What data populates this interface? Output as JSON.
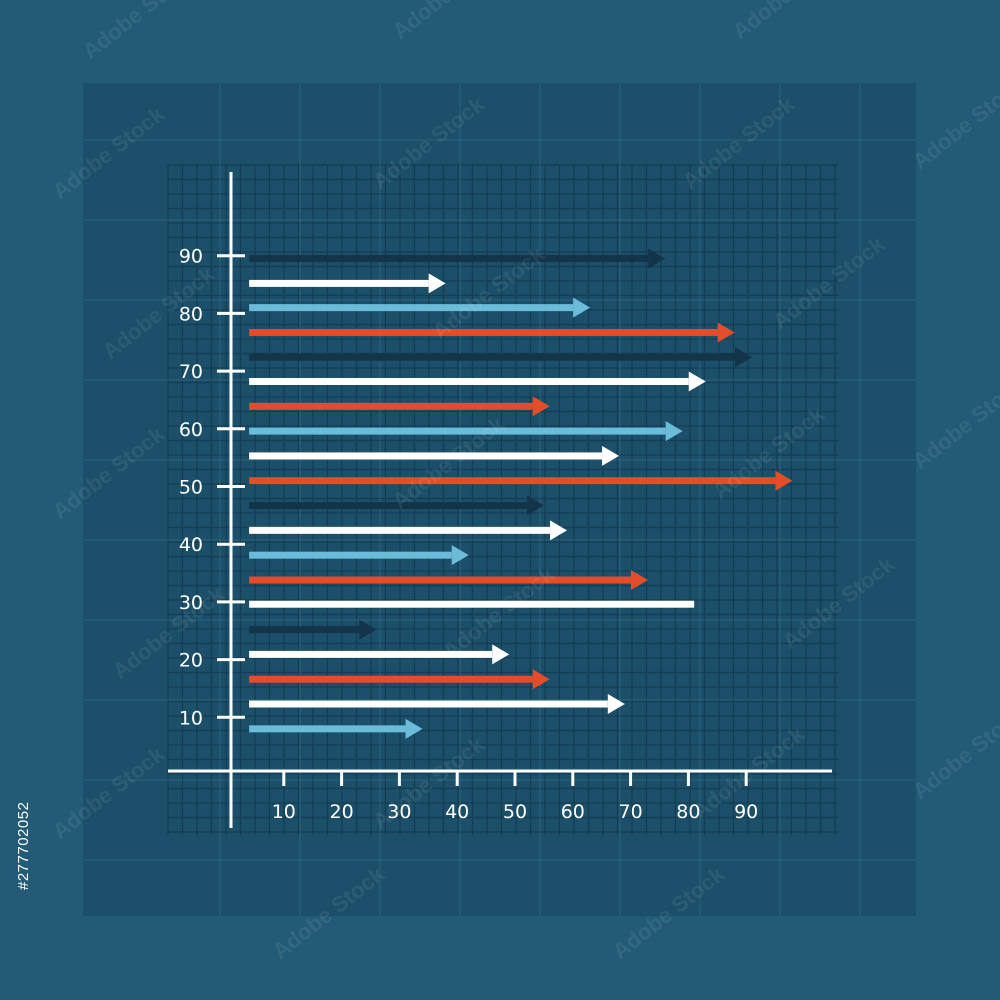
{
  "chart_data": {
    "type": "bar",
    "orientation": "horizontal",
    "y_ticks": [
      10,
      20,
      30,
      40,
      50,
      60,
      70,
      80,
      90
    ],
    "x_ticks": [
      10,
      20,
      30,
      40,
      50,
      60,
      70,
      80,
      90
    ],
    "xlim": [
      -9,
      104
    ],
    "ylim": [
      -9,
      103
    ],
    "grid": true,
    "bars": [
      {
        "y": 89.5,
        "x_start": 4,
        "x_end": 76,
        "color": "#14344a",
        "arrow": true
      },
      {
        "y": 85.2,
        "x_start": 4,
        "x_end": 38,
        "color": "#ffffff",
        "arrow": true
      },
      {
        "y": 81,
        "x_start": 4,
        "x_end": 63,
        "color": "#6bbcd8",
        "arrow": true
      },
      {
        "y": 76.7,
        "x_start": 4,
        "x_end": 88,
        "color": "#e34d2a",
        "arrow": true
      },
      {
        "y": 72.4,
        "x_start": 4,
        "x_end": 91,
        "color": "#14344a",
        "arrow": true
      },
      {
        "y": 68.2,
        "x_start": 4,
        "x_end": 83,
        "color": "#ffffff",
        "arrow": true
      },
      {
        "y": 63.9,
        "x_start": 4,
        "x_end": 56,
        "color": "#e34d2a",
        "arrow": true
      },
      {
        "y": 59.6,
        "x_start": 4,
        "x_end": 79,
        "color": "#6bbcd8",
        "arrow": true
      },
      {
        "y": 55.3,
        "x_start": 4,
        "x_end": 68,
        "color": "#ffffff",
        "arrow": true
      },
      {
        "y": 51,
        "x_start": 4,
        "x_end": 98,
        "color": "#e34d2a",
        "arrow": true
      },
      {
        "y": 46.7,
        "x_start": 4,
        "x_end": 55,
        "color": "#14344a",
        "arrow": true
      },
      {
        "y": 42.4,
        "x_start": 4,
        "x_end": 59,
        "color": "#ffffff",
        "arrow": true
      },
      {
        "y": 38.1,
        "x_start": 4,
        "x_end": 42,
        "color": "#6bbcd8",
        "arrow": true
      },
      {
        "y": 33.8,
        "x_start": 4,
        "x_end": 73,
        "color": "#e34d2a",
        "arrow": true
      },
      {
        "y": 29.6,
        "x_start": 4,
        "x_end": 81,
        "color": "#ffffff",
        "arrow": false
      },
      {
        "y": 25.2,
        "x_start": 4,
        "x_end": 26,
        "color": "#14344a",
        "arrow": true
      },
      {
        "y": 20.9,
        "x_start": 4,
        "x_end": 49,
        "color": "#ffffff",
        "arrow": true
      },
      {
        "y": 16.6,
        "x_start": 4,
        "x_end": 56,
        "color": "#e34d2a",
        "arrow": true
      },
      {
        "y": 12.3,
        "x_start": 4,
        "x_end": 69,
        "color": "#ffffff",
        "arrow": true
      },
      {
        "y": 8.0,
        "x_start": 4,
        "x_end": 34,
        "color": "#6bbcd8",
        "arrow": true
      }
    ]
  },
  "colors": {
    "background": "#235a75",
    "panel": "#1c4f69",
    "grid_fine": "#123d55",
    "grid_coarse": "#3a7592",
    "axis": "#ffffff"
  },
  "watermark": {
    "brand": "Adobe Stock",
    "stock_id": "#277702052"
  }
}
